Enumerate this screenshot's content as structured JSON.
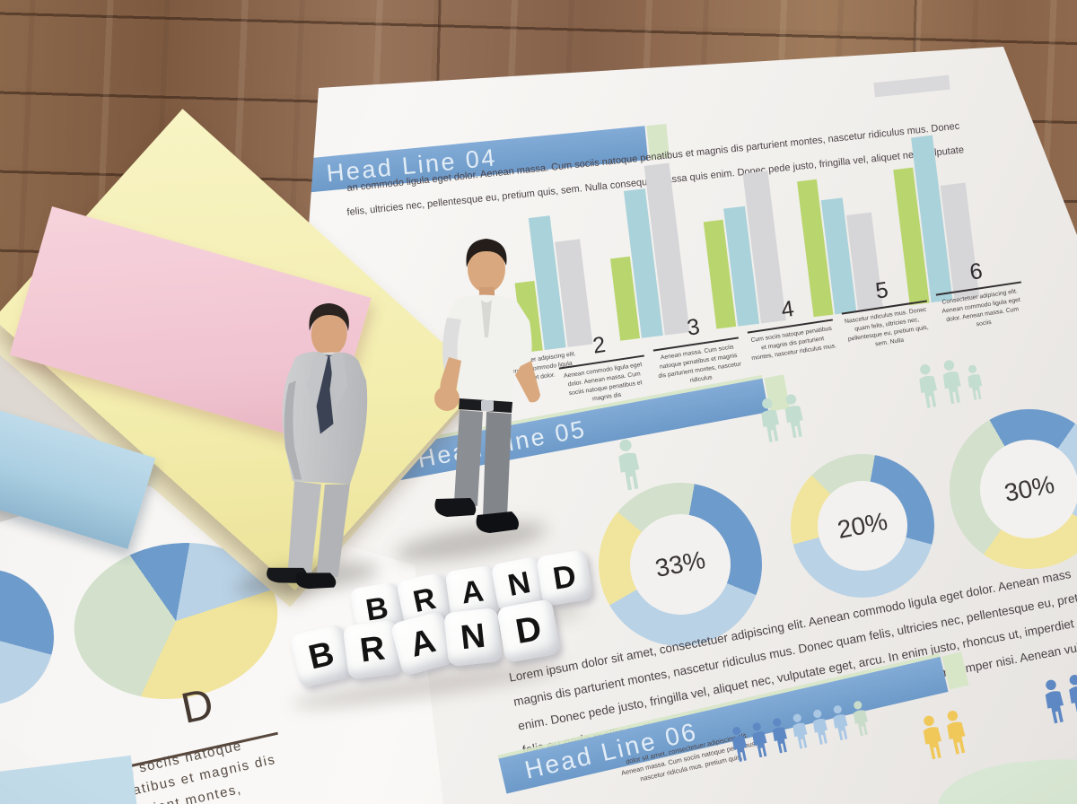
{
  "main_paper": {
    "intro_lines": [
      "an commodo ligula eget dolor. Aenean massa. Cum sociis natoque penatibus et magnis dis parturient montes, nascetur ridiculus mus. Donec",
      "felis, ultricies nec, pellentesque eu, pretium quis, sem. Nulla consequat massa quis enim. Donec pede justo, fringilla vel, aliquet nec, vulputate"
    ],
    "headline04": {
      "title": "Head Line 04",
      "items": [
        {
          "num": "2",
          "text": "Aenean commodo ligula eget dolor. Aenean massa. Cum sociis natoque penatibus et magnis dis"
        },
        {
          "num": "3",
          "text": "Aenean massa. Cum sociis natoque penatibus et magnis dis parturient montes, nascetur ridiculus"
        },
        {
          "num": "4",
          "text": "Cum sociis natoque penatibus et magnis dis parturient montes, nascetur ridiculus mus."
        },
        {
          "num": "5",
          "text": "Nascetur ridiculus mus. Donec quam felis, ultricies nec, pellentesque eu, pretium quis, sem. Nulla"
        },
        {
          "num": "6",
          "text": "Consectetuer adipiscing elit. Aenean commodo ligula eget dolor. Aenean massa. Cum sociis"
        }
      ],
      "occluded_item_text": "consectetuer adipiscing elit. Aenean commodo ligula eget dolor."
    },
    "headline05": {
      "title": "Head Line 05",
      "donuts": [
        {
          "label": "33%"
        },
        {
          "label": "20%"
        },
        {
          "label": "30%"
        }
      ],
      "paragraph": [
        "Lorem ipsum dolor sit amet, consectetuer adipiscing elit. Aenean commodo ligula eget dolor. Aenean mass",
        "magnis dis parturient montes, nascetur ridiculus mus. Donec quam felis, ultricies nec, pellentesque eu, pretium",
        "enim. Donec pede justo, fringilla vel, aliquet nec, vulputate eget, arcu. In enim justo, rhoncus ut, imperdiet",
        "felis eu pede mollis pretium. Integer tincidunt. Cras dapibus. Vivamus elementum semper nisi. Aenean vul"
      ]
    },
    "headline06": {
      "title": "Head Line 06",
      "snippet": "dolor sit amet, consectetuer adipiscing elit. Aenean massa. Cum sociis natoque penatibus, nascetur ridicula mus. pretium quis,"
    }
  },
  "left_paper": {
    "heading": "D",
    "caption": [
      "Cum sociis natoque",
      "penatibus et magnis dis",
      "parturient montes,"
    ]
  },
  "brand": {
    "row1": [
      "B",
      "R",
      "A",
      "N",
      "D"
    ],
    "row2": [
      "B",
      "R",
      "A",
      "N",
      "D"
    ]
  },
  "palette": {
    "blue": "#6d9bcb",
    "lightblue": "#b9d2e6",
    "yellow": "#f1e49c",
    "green": "#d2e0cc",
    "cream": "#efe9c8",
    "hl_bar": "#739fce",
    "hl_cap": "#d7e6c7"
  },
  "chart_data": [
    {
      "type": "bar",
      "title": "Head Line 04 grouped bars",
      "series_colors": {
        "green": "#b9d66e",
        "blue": "#a9d2da",
        "gray": "#d6d5d8"
      },
      "groups": [
        [
          78,
          148,
          118
        ],
        [
          92,
          165,
          190
        ],
        [
          120,
          132,
          168
        ],
        [
          152,
          128,
          108
        ],
        [
          152,
          185,
          128
        ]
      ]
    },
    {
      "type": "pie",
      "title": "left paper pie",
      "segments": [
        [
          "blue",
          45
        ],
        [
          "lightblue",
          62
        ],
        [
          "yellow",
          133
        ],
        [
          "green",
          120
        ]
      ],
      "start": -25
    },
    {
      "type": "pie",
      "title": "left edge partial pie",
      "segments": [
        [
          "blue",
          100
        ],
        [
          "lightblue",
          95
        ],
        [
          "cream",
          165
        ]
      ],
      "start": 5
    },
    {
      "type": "donut",
      "label": "33%",
      "segments": [
        [
          "green",
          60
        ],
        [
          "blue",
          102
        ],
        [
          "lightblue",
          128
        ],
        [
          "yellow",
          70
        ]
      ],
      "start": -50
    },
    {
      "type": "donut",
      "label": "20%",
      "segments": [
        [
          "green",
          55
        ],
        [
          "blue",
          95
        ],
        [
          "lightblue",
          150
        ],
        [
          "yellow",
          60
        ]
      ],
      "start": -45
    },
    {
      "type": "donut",
      "label": "30%",
      "segments": [
        [
          "blue",
          65
        ],
        [
          "lightblue",
          85
        ],
        [
          "yellow",
          95
        ],
        [
          "green",
          115
        ]
      ],
      "start": -30
    }
  ],
  "person_rows": {
    "donut1": [
      "#c3ddd0"
    ],
    "donut2": [
      "#c3ddd0",
      "#c3ddd0"
    ],
    "donut3": [
      "#c3ddd0",
      "#c3ddd0",
      "#c3ddd0"
    ],
    "hl06_row": [
      "#5d88c4",
      "#5d88c4",
      "#5d88c4",
      "#aac7e4",
      "#aac7e4",
      "#aac7e4",
      "#c9dcca"
    ],
    "hl06_yellow": [
      "#f0c85a",
      "#f0c85a"
    ],
    "hl06_right": [
      "#5d88c4",
      "#5d88c4"
    ]
  }
}
